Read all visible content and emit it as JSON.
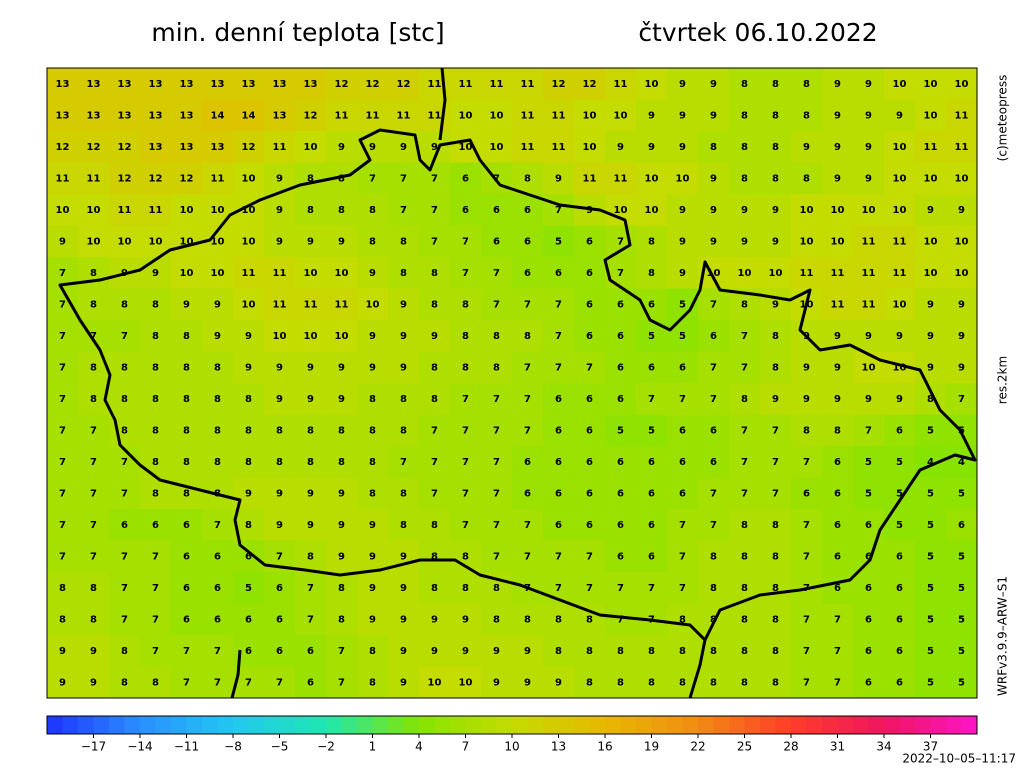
{
  "header": {
    "title": "min. denní teplota [stc]",
    "date": "čtvrtek 06.10.2022"
  },
  "side": {
    "copyright": "(c)meteopress",
    "resolution": "res.2km",
    "model": "WRFv3.9.9–ARW–S1"
  },
  "footer": {
    "timestamp": "2022–10–05–11:17"
  },
  "colorbar": {
    "lim": [
      -20,
      40
    ],
    "colors": [
      "#1e32ff",
      "#2b8fff",
      "#22c8f0",
      "#1ee8b0",
      "#86e400",
      "#c4dc00",
      "#e8b800",
      "#f08c14",
      "#ff3c28",
      "#f01460",
      "#ff14c8"
    ],
    "ticks": [
      {
        "value": -17,
        "label": "−17"
      },
      {
        "value": -14,
        "label": "−14"
      },
      {
        "value": -11,
        "label": "−11"
      },
      {
        "value": -8,
        "label": "−8"
      },
      {
        "value": -5,
        "label": "−5"
      },
      {
        "value": -2,
        "label": "−2"
      },
      1,
      4,
      7,
      10,
      13,
      16,
      19,
      22,
      25,
      28,
      31,
      34,
      37
    ]
  },
  "grid": {
    "rows": [
      [
        13,
        13,
        13,
        13,
        13,
        13,
        13,
        13,
        13,
        12,
        12,
        12,
        11,
        11,
        11,
        11,
        12,
        12,
        11,
        10,
        9,
        9,
        8,
        8,
        8,
        9,
        9,
        10,
        10,
        10
      ],
      [
        13,
        13,
        13,
        13,
        13,
        14,
        14,
        13,
        12,
        11,
        11,
        11,
        11,
        10,
        10,
        11,
        11,
        10,
        10,
        9,
        9,
        9,
        8,
        8,
        8,
        9,
        9,
        9,
        10,
        11
      ],
      [
        12,
        12,
        12,
        13,
        13,
        13,
        12,
        11,
        10,
        9,
        9,
        9,
        9,
        10,
        10,
        11,
        11,
        10,
        9,
        9,
        9,
        8,
        8,
        8,
        9,
        9,
        9,
        10,
        11,
        11
      ],
      [
        11,
        11,
        12,
        12,
        12,
        11,
        10,
        9,
        8,
        8,
        7,
        7,
        7,
        6,
        7,
        8,
        9,
        11,
        11,
        10,
        10,
        9,
        8,
        8,
        8,
        9,
        9,
        10,
        10,
        10
      ],
      [
        10,
        10,
        11,
        11,
        10,
        10,
        10,
        9,
        8,
        8,
        8,
        7,
        7,
        6,
        6,
        6,
        7,
        9,
        10,
        10,
        9,
        9,
        9,
        9,
        10,
        10,
        10,
        10,
        9,
        9
      ],
      [
        9,
        10,
        10,
        10,
        10,
        10,
        10,
        9,
        9,
        9,
        8,
        8,
        7,
        7,
        6,
        6,
        5,
        6,
        7,
        8,
        9,
        9,
        9,
        9,
        10,
        10,
        11,
        11,
        10,
        10
      ],
      [
        7,
        8,
        9,
        9,
        10,
        10,
        11,
        11,
        10,
        10,
        9,
        8,
        8,
        7,
        7,
        6,
        6,
        6,
        7,
        8,
        9,
        10,
        10,
        10,
        11,
        11,
        11,
        11,
        10,
        10
      ],
      [
        7,
        8,
        8,
        8,
        9,
        9,
        10,
        11,
        11,
        11,
        10,
        9,
        8,
        8,
        7,
        7,
        7,
        6,
        6,
        6,
        5,
        7,
        8,
        9,
        10,
        11,
        11,
        10,
        9,
        9
      ],
      [
        7,
        7,
        7,
        8,
        8,
        9,
        9,
        10,
        10,
        10,
        9,
        9,
        9,
        8,
        8,
        8,
        7,
        6,
        6,
        5,
        5,
        6,
        7,
        8,
        9,
        9,
        9,
        9,
        9,
        9
      ],
      [
        7,
        8,
        8,
        8,
        8,
        8,
        9,
        9,
        9,
        9,
        9,
        9,
        8,
        8,
        8,
        7,
        7,
        7,
        6,
        6,
        6,
        7,
        7,
        8,
        9,
        9,
        10,
        10,
        9,
        9
      ],
      [
        7,
        8,
        8,
        8,
        8,
        8,
        8,
        9,
        9,
        9,
        8,
        8,
        8,
        7,
        7,
        7,
        6,
        6,
        6,
        7,
        7,
        7,
        8,
        9,
        9,
        9,
        9,
        9,
        8,
        7
      ],
      [
        7,
        7,
        8,
        8,
        8,
        8,
        8,
        8,
        8,
        8,
        8,
        8,
        7,
        7,
        7,
        7,
        6,
        6,
        5,
        5,
        6,
        6,
        7,
        7,
        8,
        8,
        7,
        6,
        5,
        5
      ],
      [
        7,
        7,
        7,
        8,
        8,
        8,
        8,
        8,
        8,
        8,
        8,
        7,
        7,
        7,
        7,
        6,
        6,
        6,
        6,
        6,
        6,
        6,
        7,
        7,
        7,
        6,
        5,
        5,
        4,
        4
      ],
      [
        7,
        7,
        7,
        8,
        8,
        8,
        9,
        9,
        9,
        9,
        8,
        8,
        7,
        7,
        7,
        6,
        6,
        6,
        6,
        6,
        6,
        7,
        7,
        7,
        6,
        6,
        5,
        5,
        5,
        5
      ],
      [
        7,
        7,
        6,
        6,
        6,
        7,
        8,
        9,
        9,
        9,
        9,
        8,
        8,
        7,
        7,
        7,
        6,
        6,
        6,
        6,
        7,
        7,
        8,
        8,
        7,
        6,
        6,
        5,
        5,
        6
      ],
      [
        7,
        7,
        7,
        7,
        6,
        6,
        6,
        7,
        8,
        9,
        9,
        9,
        8,
        8,
        7,
        7,
        7,
        7,
        6,
        6,
        7,
        8,
        8,
        8,
        7,
        6,
        6,
        6,
        5,
        5
      ],
      [
        8,
        8,
        7,
        7,
        6,
        6,
        5,
        6,
        7,
        8,
        9,
        9,
        8,
        8,
        8,
        7,
        7,
        7,
        7,
        7,
        7,
        8,
        8,
        8,
        7,
        6,
        6,
        6,
        5,
        5
      ],
      [
        8,
        8,
        7,
        7,
        6,
        6,
        6,
        6,
        7,
        8,
        9,
        9,
        9,
        9,
        8,
        8,
        8,
        8,
        7,
        7,
        8,
        8,
        8,
        8,
        7,
        7,
        6,
        6,
        5,
        5
      ],
      [
        9,
        9,
        8,
        7,
        7,
        7,
        6,
        6,
        6,
        7,
        8,
        9,
        9,
        9,
        9,
        9,
        8,
        8,
        8,
        8,
        8,
        8,
        8,
        8,
        7,
        7,
        6,
        6,
        5,
        5
      ],
      [
        9,
        9,
        8,
        8,
        7,
        7,
        7,
        7,
        6,
        7,
        8,
        9,
        10,
        10,
        9,
        9,
        9,
        8,
        8,
        8,
        8,
        8,
        8,
        8,
        7,
        7,
        6,
        6,
        5,
        5
      ]
    ]
  }
}
